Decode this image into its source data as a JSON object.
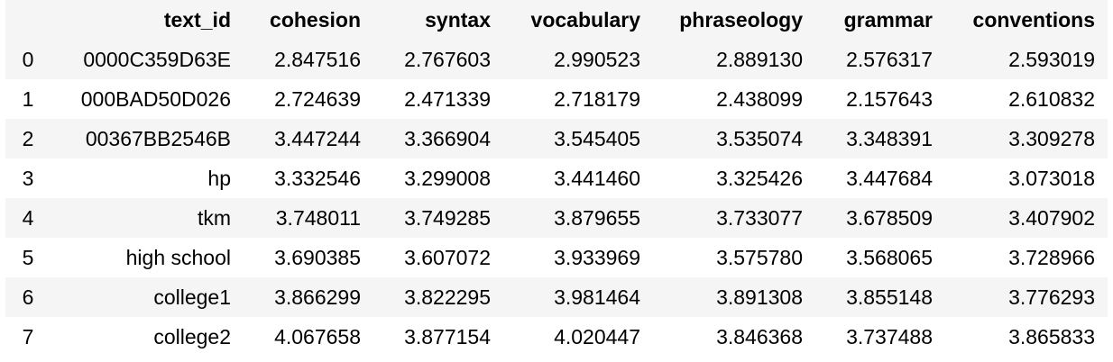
{
  "table": {
    "columns": [
      "",
      "text_id",
      "cohesion",
      "syntax",
      "vocabulary",
      "phraseology",
      "grammar",
      "conventions"
    ],
    "rows": [
      [
        "0",
        "0000C359D63E",
        "2.847516",
        "2.767603",
        "2.990523",
        "2.889130",
        "2.576317",
        "2.593019"
      ],
      [
        "1",
        "000BAD50D026",
        "2.724639",
        "2.471339",
        "2.718179",
        "2.438099",
        "2.157643",
        "2.610832"
      ],
      [
        "2",
        "00367BB2546B",
        "3.447244",
        "3.366904",
        "3.545405",
        "3.535074",
        "3.348391",
        "3.309278"
      ],
      [
        "3",
        "hp",
        "3.332546",
        "3.299008",
        "3.441460",
        "3.325426",
        "3.447684",
        "3.073018"
      ],
      [
        "4",
        "tkm",
        "3.748011",
        "3.749285",
        "3.879655",
        "3.733077",
        "3.678509",
        "3.407902"
      ],
      [
        "5",
        "high school",
        "3.690385",
        "3.607072",
        "3.933969",
        "3.575780",
        "3.568065",
        "3.728966"
      ],
      [
        "6",
        "college1",
        "3.866299",
        "3.822295",
        "3.981464",
        "3.891308",
        "3.855148",
        "3.776293"
      ],
      [
        "7",
        "college2",
        "4.067658",
        "3.877154",
        "4.020447",
        "3.846368",
        "3.737488",
        "3.865833"
      ]
    ]
  },
  "colors": {
    "stripe": "#f5f5f5",
    "background": "#ffffff",
    "text": "#000000"
  }
}
